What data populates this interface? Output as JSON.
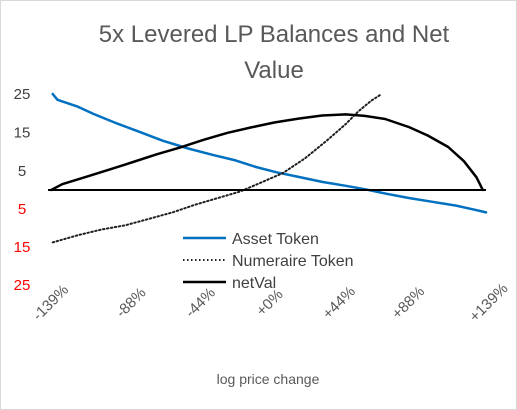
{
  "chart_data": {
    "type": "line",
    "title_lines": [
      "5x Levered LP Balances and Net",
      "Value"
    ],
    "xlabel": "log price change",
    "ylabel": "",
    "x_unit": "log price change (%)",
    "xlim": [
      -139,
      139
    ],
    "ylim": [
      -25,
      25
    ],
    "x_ticks": [
      "-139%",
      "-88%",
      "-44%",
      "+0%",
      "+44%",
      "+88%",
      "+139%"
    ],
    "x_tick_values": [
      -139,
      -88,
      -44,
      0,
      44,
      88,
      139
    ],
    "y_ticks": [
      {
        "label": "25",
        "value": 25,
        "color": "#404040"
      },
      {
        "label": "15",
        "value": 15,
        "color": "#404040"
      },
      {
        "label": "5",
        "value": 5,
        "color": "#404040"
      },
      {
        "label": "5",
        "value": -5,
        "color": "#ff0000"
      },
      {
        "label": "15",
        "value": -15,
        "color": "#ff0000"
      },
      {
        "label": "25",
        "value": -25,
        "color": "#ff0000"
      }
    ],
    "grid": false,
    "legend_position": "center",
    "series": [
      {
        "name": "Asset Token",
        "color": "#0070c0",
        "style": "solid",
        "points": [
          [
            -136,
            25
          ],
          [
            -133,
            23.5
          ],
          [
            -120,
            21.7
          ],
          [
            -110,
            19.8
          ],
          [
            -95,
            17.3
          ],
          [
            -80,
            15
          ],
          [
            -66,
            12.8
          ],
          [
            -50,
            10.8
          ],
          [
            -35,
            9.2
          ],
          [
            -20,
            7.7
          ],
          [
            -7,
            6
          ],
          [
            6,
            4.6
          ],
          [
            20,
            3.4
          ],
          [
            35,
            2.1
          ],
          [
            50,
            1.1
          ],
          [
            62,
            0.2
          ],
          [
            76,
            -1
          ],
          [
            90,
            -2.1
          ],
          [
            105,
            -3.1
          ],
          [
            120,
            -4.1
          ],
          [
            132,
            -5.2
          ],
          [
            139,
            -5.9
          ]
        ]
      },
      {
        "name": "Numeraire Token",
        "color": "#1f1f1f",
        "style": "dotted",
        "points": [
          [
            -136,
            -13.8
          ],
          [
            -120,
            -11.9
          ],
          [
            -105,
            -10.4
          ],
          [
            -90,
            -9.3
          ],
          [
            -75,
            -7.6
          ],
          [
            -60,
            -5.9
          ],
          [
            -45,
            -3.8
          ],
          [
            -32,
            -2.2
          ],
          [
            -17,
            -0.4
          ],
          [
            -4,
            1.9
          ],
          [
            10,
            4.4
          ],
          [
            24,
            8.2
          ],
          [
            38,
            12.9
          ],
          [
            50,
            17.2
          ],
          [
            58,
            20.5
          ],
          [
            66,
            23.2
          ],
          [
            72,
            24.8
          ]
        ]
      },
      {
        "name": "netVal",
        "color": "#000000",
        "style": "solid",
        "points": [
          [
            -137,
            0
          ],
          [
            -130,
            1.5
          ],
          [
            -115,
            3.4
          ],
          [
            -100,
            5.3
          ],
          [
            -85,
            7.3
          ],
          [
            -70,
            9.3
          ],
          [
            -55,
            11.1
          ],
          [
            -40,
            13.1
          ],
          [
            -25,
            14.9
          ],
          [
            -10,
            16.3
          ],
          [
            5,
            17.6
          ],
          [
            20,
            18.6
          ],
          [
            35,
            19.4
          ],
          [
            50,
            19.7
          ],
          [
            62,
            19.3
          ],
          [
            75,
            18.5
          ],
          [
            90,
            16.4
          ],
          [
            102,
            14.2
          ],
          [
            115,
            11.2
          ],
          [
            125,
            7.5
          ],
          [
            133,
            3.3
          ],
          [
            137,
            0
          ]
        ]
      }
    ]
  }
}
